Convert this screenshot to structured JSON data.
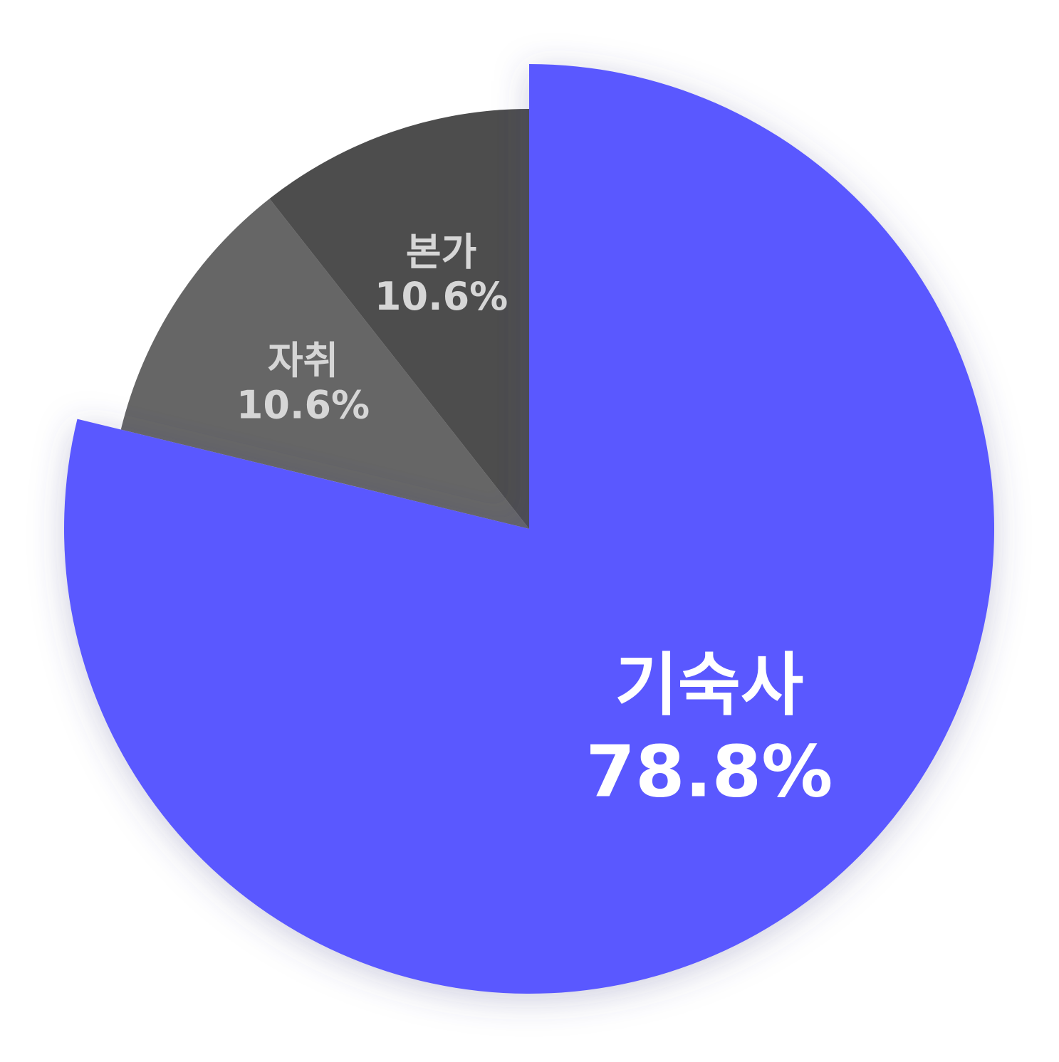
{
  "chart_data": {
    "type": "pie",
    "slices": [
      {
        "label": "기숙사",
        "value_label": "78.8%",
        "value": 78.8,
        "color": "#5a58ff",
        "text_color": "#ffffff",
        "exploded": true
      },
      {
        "label": "자취",
        "value_label": "10.6%",
        "value": 10.6,
        "color": "#666666",
        "text_color": "#d6d6d6",
        "exploded": false
      },
      {
        "label": "본가",
        "value_label": "10.6%",
        "value": 10.6,
        "color": "#4d4d4d",
        "text_color": "#d6d6d6",
        "exploded": false
      }
    ]
  }
}
